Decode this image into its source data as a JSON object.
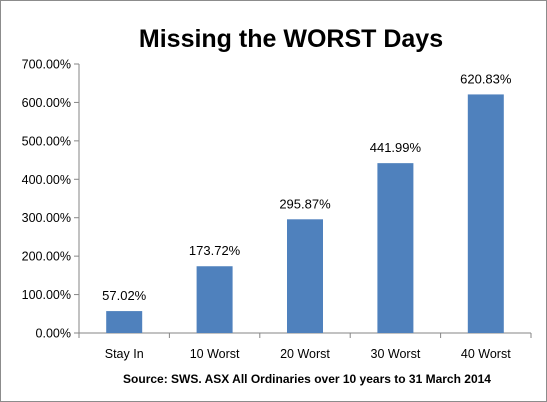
{
  "chart_data": {
    "type": "bar",
    "title": "Missing the WORST Days",
    "categories": [
      "Stay In",
      "10 Worst",
      "20 Worst",
      "30 Worst",
      "40 Worst"
    ],
    "values": [
      57.02,
      173.72,
      295.87,
      441.99,
      620.83
    ],
    "data_labels": [
      "57.02%",
      "173.72%",
      "295.87%",
      "441.99%",
      "620.83%"
    ],
    "y_ticks": [
      0,
      100,
      200,
      300,
      400,
      500,
      600,
      700
    ],
    "y_tick_labels": [
      "0.00%",
      "100.00%",
      "200.00%",
      "300.00%",
      "400.00%",
      "500.00%",
      "600.00%",
      "700.00%"
    ],
    "ylim": [
      0,
      700
    ],
    "grid": false,
    "legend": "none",
    "bar_color": "#4f81bd",
    "source_note": "Source: SWS. ASX All Ordinaries  over 10 years to 31 March 2014"
  }
}
